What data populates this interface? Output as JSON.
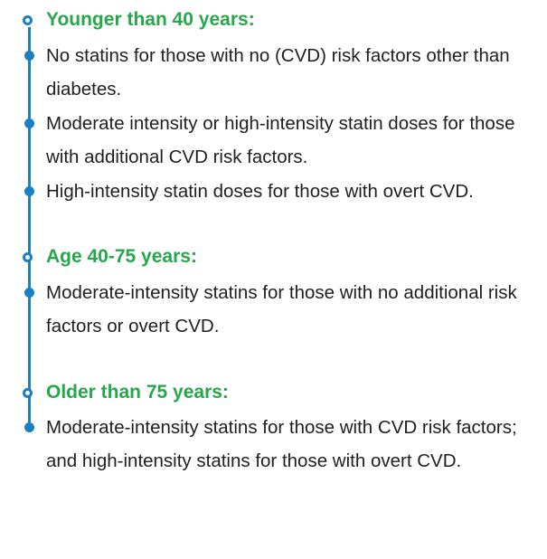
{
  "sections": [
    {
      "heading": "Younger than 40 years:",
      "items": [
        "No statins for those with no (CVD) risk factors other than diabetes.",
        "Moderate intensity or high-intensity statin doses for those with additional CVD risk factors.",
        "High-intensity statin doses for those with overt CVD."
      ]
    },
    {
      "heading": "Age 40-75 years:",
      "items": [
        "Moderate-intensity statins for those with no additional risk factors or overt CVD."
      ]
    },
    {
      "heading": "Older than 75 years:",
      "items": [
        "Moderate-intensity statins for those with CVD risk factors; and high-intensity statins for those with overt CVD."
      ]
    }
  ],
  "colors": {
    "line": "#1a7fc4",
    "heading": "#26a84a",
    "text": "#1f1f1f"
  }
}
